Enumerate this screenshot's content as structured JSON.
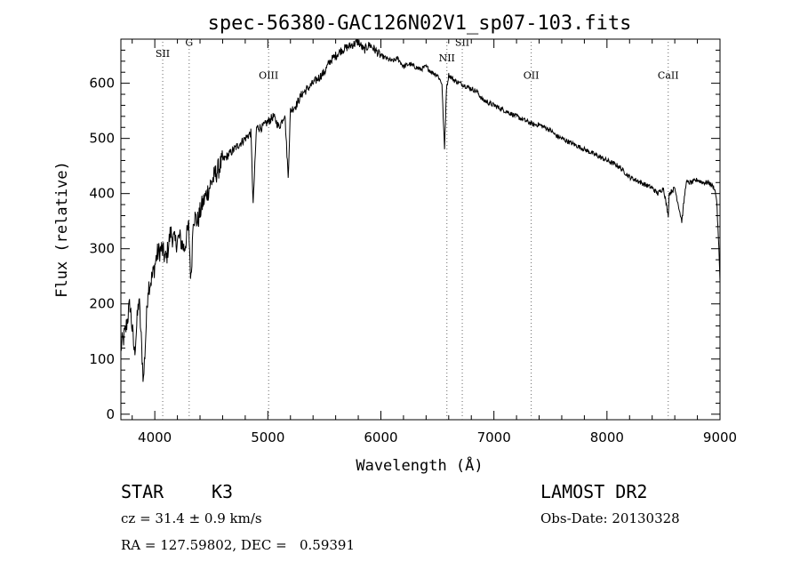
{
  "chart_data": {
    "type": "line",
    "title": "spec-56380-GAC126N02V1_sp07-103.fits",
    "xlabel": "Wavelength (Å)",
    "ylabel": "Flux (relative)",
    "xlim": [
      3700,
      9000
    ],
    "ylim": [
      -10,
      680
    ],
    "x_ticks": [
      4000,
      5000,
      6000,
      7000,
      8000,
      9000
    ],
    "y_ticks": [
      0,
      100,
      200,
      300,
      400,
      500,
      600
    ],
    "grid": false,
    "series": [
      {
        "x": [
          3700,
          3740,
          3780,
          3820,
          3860,
          3900,
          3940,
          3980,
          4020,
          4060,
          4100,
          4140,
          4180,
          4220,
          4260,
          4300,
          4320,
          4340,
          4380,
          4420,
          4460,
          4500,
          4550,
          4600,
          4650,
          4700,
          4750,
          4800,
          4850,
          4870,
          4900,
          4950,
          5000,
          5050,
          5100,
          5150,
          5180,
          5200,
          5250,
          5300,
          5350,
          5400,
          5450,
          5500,
          5550,
          5600,
          5650,
          5700,
          5750,
          5800,
          5850,
          5900,
          5950,
          6000,
          6050,
          6100,
          6150,
          6200,
          6250,
          6300,
          6350,
          6400,
          6450,
          6500,
          6540,
          6563,
          6580,
          6600,
          6650,
          6700,
          6750,
          6800,
          6850,
          6900,
          6950,
          7000,
          7050,
          7100,
          7150,
          7200,
          7250,
          7300,
          7350,
          7400,
          7450,
          7500,
          7550,
          7600,
          7650,
          7700,
          7750,
          7800,
          7850,
          7900,
          7950,
          8000,
          8050,
          8100,
          8150,
          8200,
          8250,
          8300,
          8350,
          8400,
          8450,
          8500,
          8542,
          8550,
          8600,
          8662,
          8700,
          8750,
          8800,
          8850,
          8900,
          8950,
          8970,
          8990,
          9000
        ],
        "y": [
          120,
          150,
          200,
          110,
          210,
          60,
          230,
          250,
          290,
          300,
          280,
          330,
          310,
          320,
          300,
          340,
          240,
          360,
          350,
          380,
          400,
          420,
          440,
          460,
          470,
          480,
          490,
          500,
          510,
          380,
          520,
          520,
          530,
          540,
          520,
          545,
          430,
          550,
          560,
          580,
          590,
          600,
          610,
          620,
          640,
          650,
          660,
          665,
          670,
          675,
          660,
          670,
          660,
          650,
          645,
          640,
          645,
          630,
          635,
          630,
          625,
          630,
          620,
          615,
          600,
          480,
          590,
          615,
          605,
          600,
          595,
          590,
          585,
          570,
          565,
          560,
          555,
          550,
          545,
          540,
          535,
          530,
          525,
          525,
          520,
          515,
          505,
          500,
          495,
          490,
          485,
          480,
          475,
          470,
          465,
          460,
          455,
          450,
          440,
          430,
          425,
          420,
          415,
          410,
          400,
          410,
          360,
          400,
          410,
          350,
          420,
          420,
          425,
          420,
          420,
          410,
          390,
          300,
          240
        ]
      }
    ],
    "lines": [
      {
        "label": "SII",
        "x": 4070,
        "label_y": 648
      },
      {
        "label": "G",
        "x": 4304,
        "label_y": 668
      },
      {
        "label": "OIII",
        "x": 5007,
        "label_y": 608
      },
      {
        "label": "NII",
        "x": 6584,
        "label_y": 640
      },
      {
        "label": "SII",
        "x": 6720,
        "label_y": 668
      },
      {
        "label": "OII",
        "x": 7330,
        "label_y": 608
      },
      {
        "label": "CaII",
        "x": 8542,
        "label_y": 608
      }
    ]
  },
  "info": {
    "object_type": "STAR",
    "subclass": "K3",
    "cz": "cz = 31.4 ± 0.9 km/s",
    "radec": "RA = 127.59802, DEC =   0.59391",
    "survey": "LAMOST DR2",
    "obs_date": "Obs-Date: 20130328"
  }
}
